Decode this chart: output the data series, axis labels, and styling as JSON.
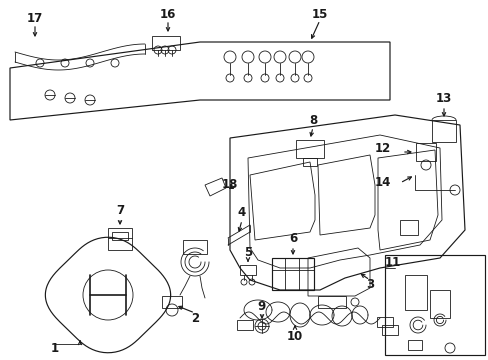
{
  "bg_color": "#ffffff",
  "line_color": "#1a1a1a",
  "fig_width": 4.89,
  "fig_height": 3.6,
  "dpi": 100,
  "font_size": 8.5,
  "font_size_sm": 7.5,
  "lw_main": 0.85,
  "lw_thin": 0.6
}
